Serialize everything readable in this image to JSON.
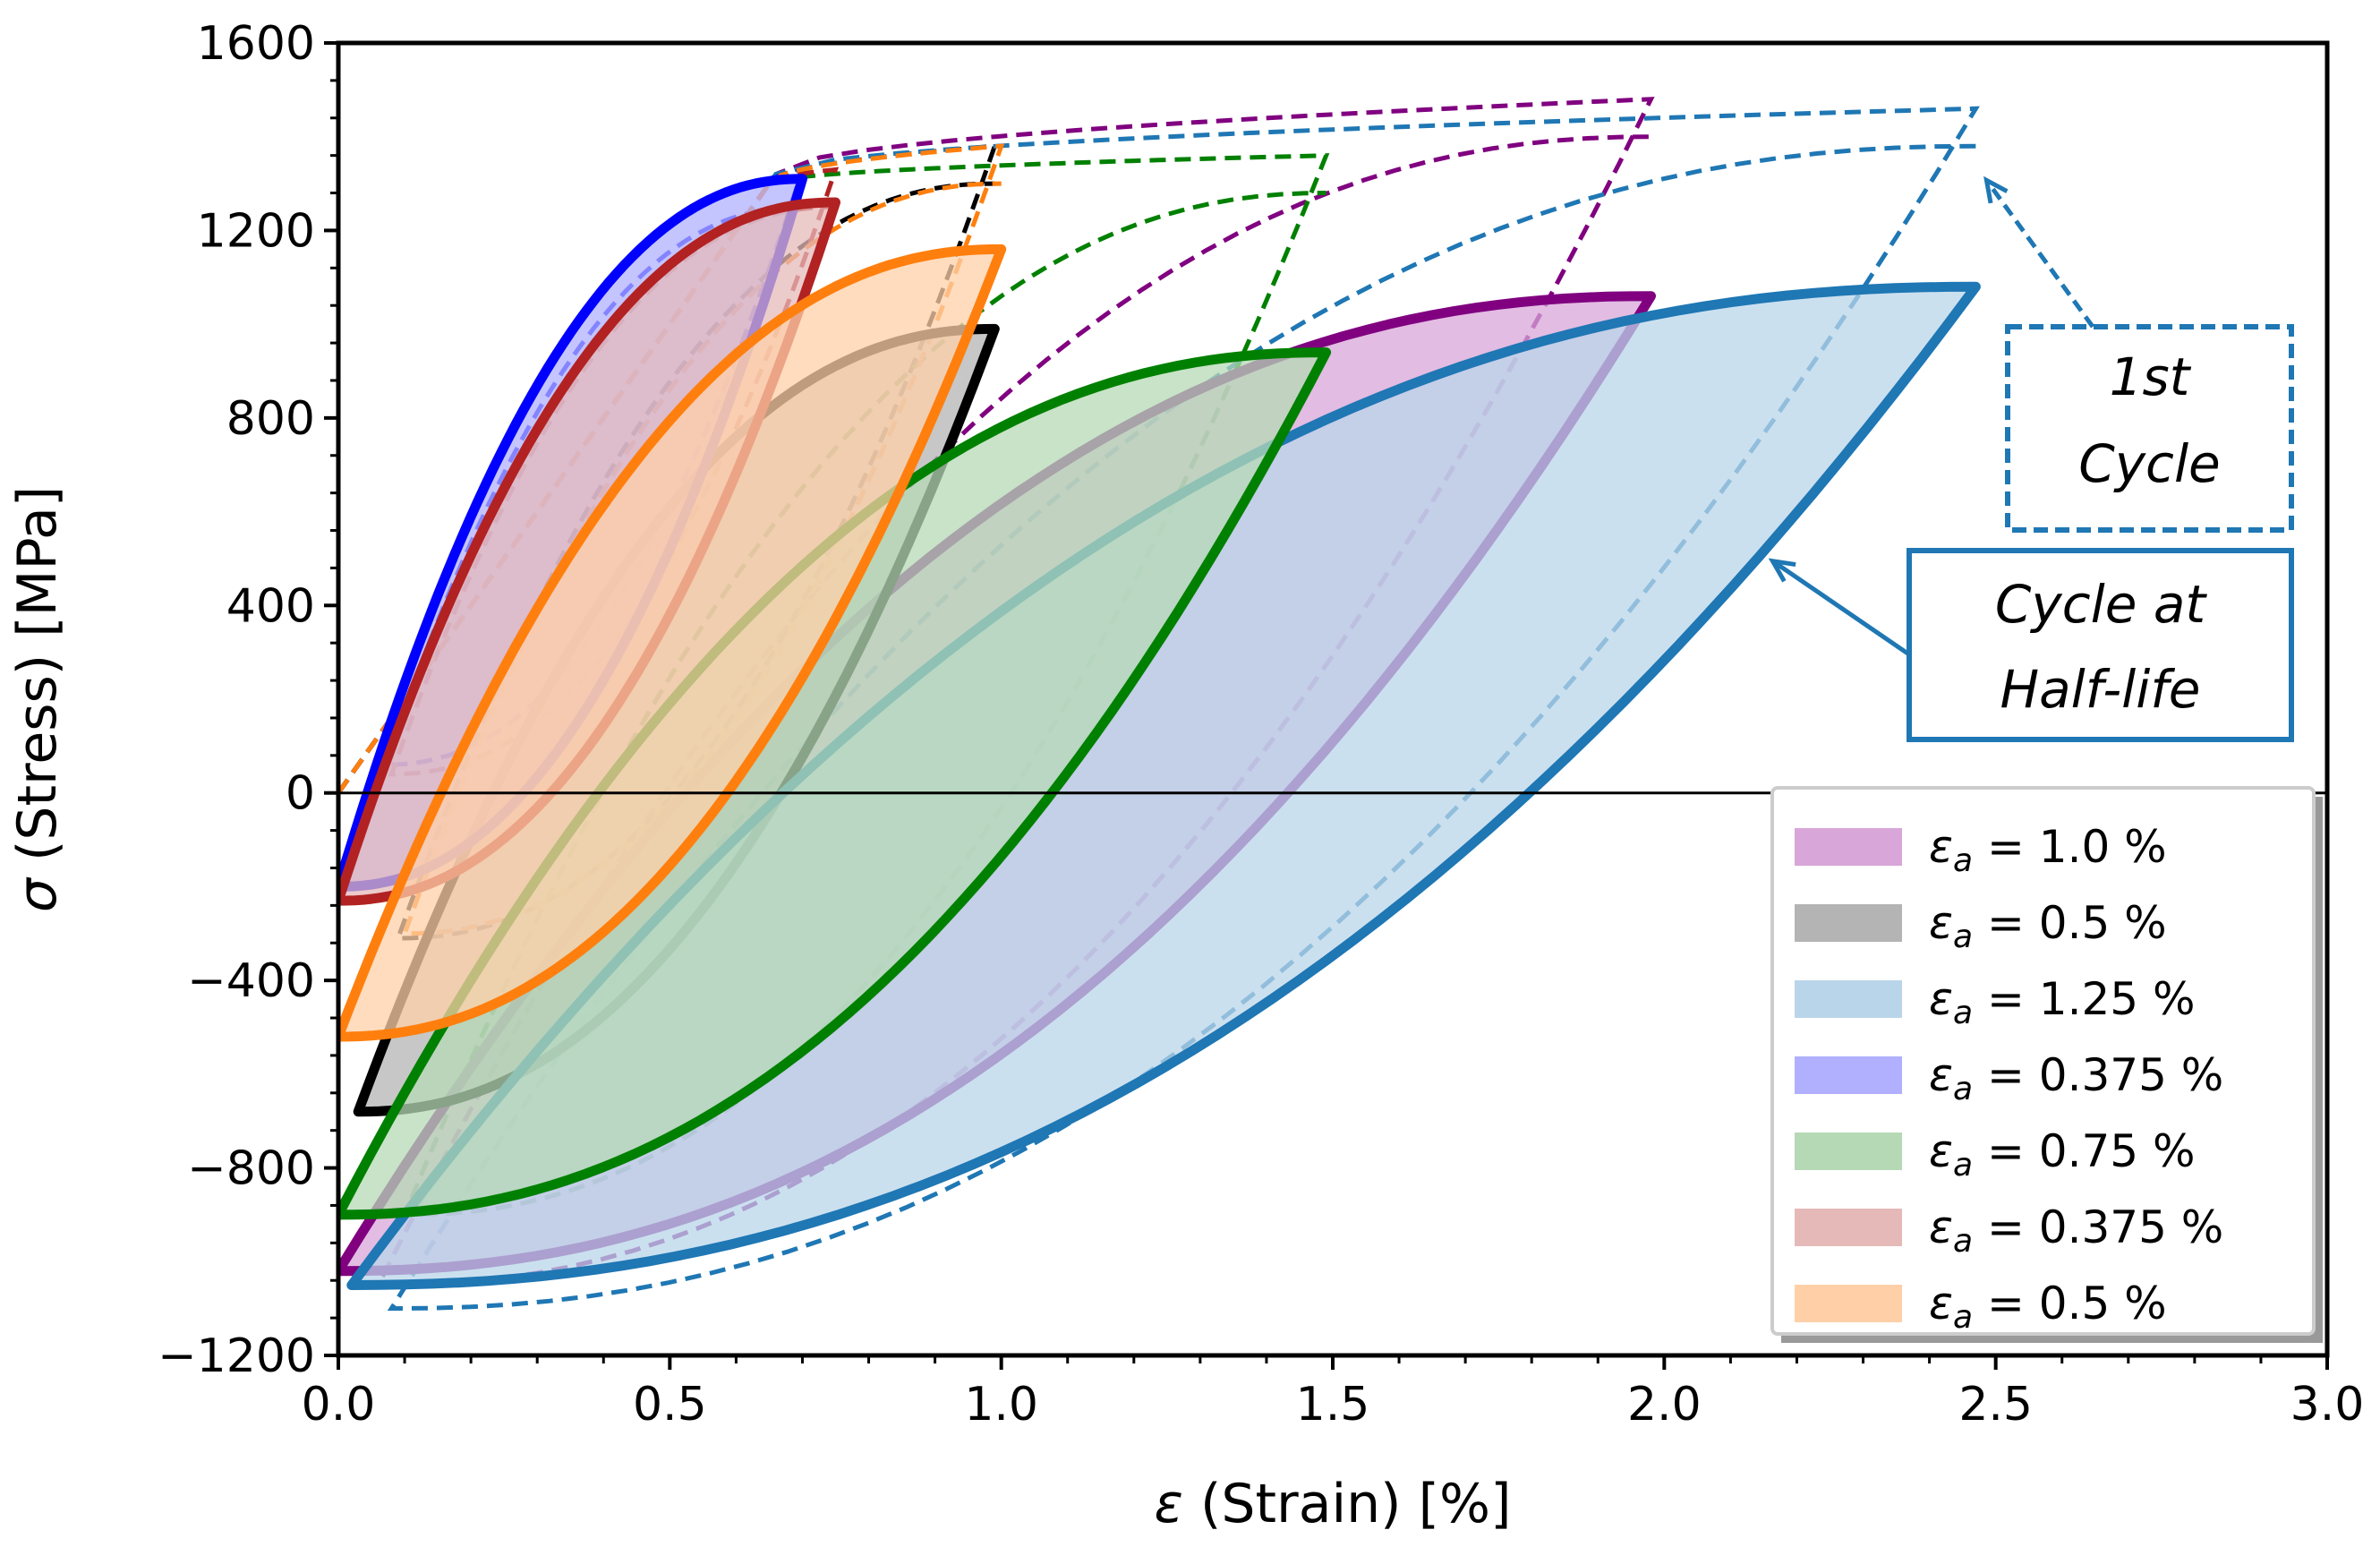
{
  "chart_data": {
    "type": "line",
    "title": "",
    "xlabel_symbol": "ε",
    "xlabel_text": " (Strain) [%]",
    "ylabel_symbol": "σ",
    "ylabel_text": " (Stress) [MPa]",
    "xlim": [
      0.0,
      3.0
    ],
    "ylim": [
      -1200,
      1600
    ],
    "xticks": [
      0.0,
      0.5,
      1.0,
      1.5,
      2.0,
      2.5,
      3.0
    ],
    "xtick_labels": [
      "0.0",
      "0.5",
      "1.0",
      "1.5",
      "2.0",
      "2.5",
      "3.0"
    ],
    "yticks": [
      -1200,
      -800,
      -400,
      0,
      400,
      800,
      1200,
      1600
    ],
    "ytick_labels": [
      "−1200",
      "−800",
      "−400",
      "0",
      "400",
      "800",
      "1200",
      "1600"
    ],
    "grid": false,
    "zero_line": true,
    "legend_position": "lower-right",
    "series": [
      {
        "name": "εa = 1.0 %",
        "legend_var": "ε",
        "legend_sub": "a",
        "legend_value": " = 1.0 %",
        "line_color": "#800080",
        "fill_color": "#d8a6d8",
        "half_life": {
          "x_min": 0.0,
          "x_max": 1.98,
          "y_min": -1020,
          "y_max": 1060
        },
        "first_cycle": {
          "x_start": 0.0,
          "y_start": 0,
          "y_peak": 1480,
          "x_min": 0.06,
          "y_min": -1050,
          "y_knee": 1320
        }
      },
      {
        "name": "εa = 0.5 %",
        "legend_var": "ε",
        "legend_sub": "a",
        "legend_value": " = 0.5 %",
        "line_color": "#000000",
        "fill_color": "#b4b4b4",
        "half_life": {
          "x_min": 0.03,
          "x_max": 0.99,
          "y_min": -680,
          "y_max": 990
        },
        "first_cycle": {
          "x_start": 0.0,
          "y_start": 0,
          "y_peak": 1380,
          "x_min": 0.09,
          "y_min": -310,
          "y_knee": 1300
        }
      },
      {
        "name": "εa = 1.25 %",
        "legend_var": "ε",
        "legend_sub": "a",
        "legend_value": " = 1.25 %",
        "line_color": "#1f77b4",
        "fill_color": "#b9d5ea",
        "half_life": {
          "x_min": 0.02,
          "x_max": 2.47,
          "y_min": -1050,
          "y_max": 1080
        },
        "first_cycle": {
          "x_start": 0.0,
          "y_start": 0,
          "y_peak": 1460,
          "x_min": 0.08,
          "y_min": -1100,
          "y_knee": 1320
        }
      },
      {
        "name": "εa = 0.375 %",
        "legend_var": "ε",
        "legend_sub": "a",
        "legend_value": " = 0.375 %",
        "line_color": "#0000ff",
        "fill_color": "#b0b0ff",
        "half_life": {
          "x_min": 0.0,
          "x_max": 0.7,
          "y_min": -200,
          "y_max": 1310
        },
        "first_cycle": {
          "x_start": 0.0,
          "y_start": 0,
          "y_peak": 1330,
          "x_min": 0.07,
          "y_min": 60,
          "y_knee": 1300
        }
      },
      {
        "name": "εa = 0.75 %",
        "legend_var": "ε",
        "legend_sub": "a",
        "legend_value": " = 0.75 %",
        "line_color": "#008000",
        "fill_color": "#b5d9b5",
        "half_life": {
          "x_min": 0.0,
          "x_max": 1.49,
          "y_min": -900,
          "y_max": 940
        },
        "first_cycle": {
          "x_start": 0.0,
          "y_start": 0,
          "y_peak": 1360,
          "x_min": 0.1,
          "y_min": -900,
          "y_knee": 1300
        }
      },
      {
        "name": "εa = 0.375 %",
        "legend_var": "ε",
        "legend_sub": "a",
        "legend_value": " = 0.375 %",
        "line_color": "#b22222",
        "fill_color": "#e6b9b9",
        "half_life": {
          "x_min": 0.0,
          "x_max": 0.75,
          "y_min": -230,
          "y_max": 1260
        },
        "first_cycle": {
          "x_start": 0.0,
          "y_start": 0,
          "y_peak": 1330,
          "x_min": 0.08,
          "y_min": 40,
          "y_knee": 1300
        }
      },
      {
        "name": "εa = 0.5 %",
        "legend_var": "ε",
        "legend_sub": "a",
        "legend_value": " = 0.5 %",
        "line_color": "#ff7f0e",
        "fill_color": "#ffd0a8",
        "half_life": {
          "x_min": 0.0,
          "x_max": 1.0,
          "y_min": -520,
          "y_max": 1160
        },
        "first_cycle": {
          "x_start": 0.0,
          "y_start": 0,
          "y_peak": 1380,
          "x_min": 0.1,
          "y_min": -300,
          "y_knee": 1300
        }
      }
    ],
    "annotations": [
      {
        "lines": [
          "1st",
          "Cycle"
        ],
        "style": "dashed",
        "color": "#1f77b4",
        "target": {
          "x": 2.47,
          "y": 1330
        }
      },
      {
        "lines": [
          "Cycle at",
          "Half-life"
        ],
        "style": "solid",
        "color": "#1f77b4",
        "target": {
          "x": 2.15,
          "y": 510
        }
      }
    ]
  }
}
